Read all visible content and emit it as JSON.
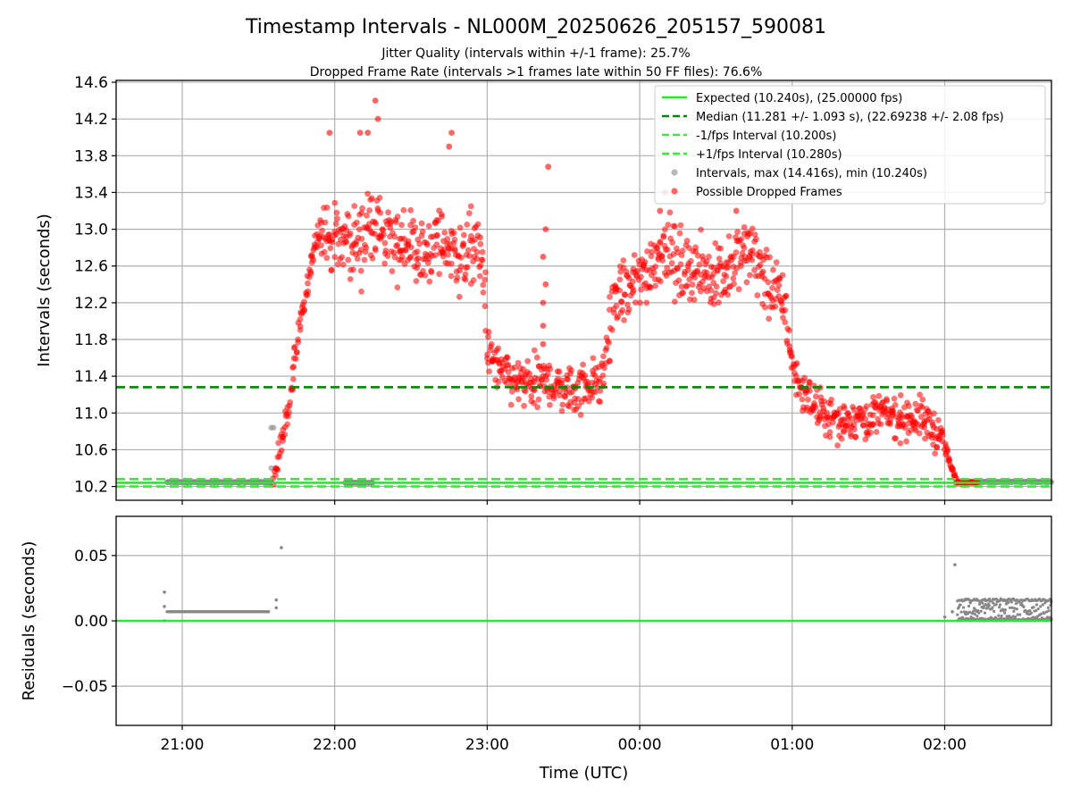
{
  "title": "Timestamp Intervals - NL000M_20250626_205157_590081",
  "subtitle_1": "Jitter Quality (intervals within +/-1 frame): 25.7%",
  "subtitle_2": "Dropped Frame Rate (intervals >1 frames late within 50 FF files): 76.6%",
  "colors": {
    "expected": "#22ee22",
    "median": "#008800",
    "bound": "#33ee33",
    "intervals": "#888888",
    "dropped": "#ff0000",
    "grid": "#b0b0b0",
    "axes": "#000000"
  },
  "chart_data": [
    {
      "type": "scatter",
      "ylabel": "Intervals (seconds)",
      "ylim": [
        10.05,
        14.62
      ],
      "yticks": [
        10.2,
        10.6,
        11.0,
        11.4,
        11.8,
        12.2,
        12.6,
        13.0,
        13.4,
        13.8,
        14.2,
        14.6
      ],
      "ytick_labels": [
        "10.2",
        "10.6",
        "11.0",
        "11.4",
        "11.8",
        "12.2",
        "12.6",
        "13.0",
        "13.4",
        "13.8",
        "14.2",
        "14.6"
      ],
      "grid": true,
      "lines": [
        {
          "label": "Expected (10.240s), (25.00000 fps)",
          "y": 10.24,
          "style": "solid",
          "color_key": "expected"
        },
        {
          "label": "Median (11.281 +/- 1.093 s), (22.69238 +/- 2.08 fps)",
          "y": 11.281,
          "style": "dashed",
          "color_key": "median"
        },
        {
          "label": "-1/fps Interval (10.200s)",
          "y": 10.2,
          "style": "dashed",
          "color_key": "bound"
        },
        {
          "label": "+1/fps Interval (10.280s)",
          "y": 10.28,
          "style": "dashed",
          "color_key": "bound"
        }
      ],
      "scatter_legend": [
        {
          "label": "Intervals, max (14.416s), min (10.240s)",
          "color_key": "intervals"
        },
        {
          "label": "Possible Dropped Frames",
          "color_key": "dropped"
        }
      ],
      "legend_position": "upper right",
      "normal_intervals": [
        {
          "x_start": "20:54",
          "x_end": "21:35",
          "value": 10.247
        },
        {
          "x_start": "22:04",
          "x_end": "22:15",
          "value": 10.24
        },
        {
          "x_start": "02:05",
          "x_end": "02:42",
          "value": 10.25
        }
      ],
      "dropped_trend": [
        [
          "21:36",
          10.3
        ],
        [
          "21:38",
          10.55
        ],
        [
          "21:40",
          10.8
        ],
        [
          "21:42",
          11.1
        ],
        [
          "21:44",
          11.5
        ],
        [
          "21:46",
          11.85
        ],
        [
          "21:48",
          12.15
        ],
        [
          "21:50",
          12.5
        ],
        [
          "21:52",
          12.8
        ],
        [
          "21:54",
          13.0
        ],
        [
          "22:00",
          12.85
        ],
        [
          "22:05",
          12.9
        ],
        [
          "22:10",
          12.85
        ],
        [
          "22:15",
          13.1
        ],
        [
          "22:20",
          12.85
        ],
        [
          "22:25",
          12.85
        ],
        [
          "22:30",
          12.85
        ],
        [
          "22:35",
          12.7
        ],
        [
          "22:40",
          12.9
        ],
        [
          "22:45",
          12.8
        ],
        [
          "22:50",
          12.65
        ],
        [
          "22:55",
          12.85
        ],
        [
          "22:59",
          12.5
        ],
        [
          "23:00",
          11.65
        ],
        [
          "23:05",
          11.45
        ],
        [
          "23:10",
          11.35
        ],
        [
          "23:15",
          11.3
        ],
        [
          "23:20",
          11.3
        ],
        [
          "23:25",
          11.35
        ],
        [
          "23:30",
          11.25
        ],
        [
          "23:35",
          11.25
        ],
        [
          "23:40",
          11.35
        ],
        [
          "23:45",
          11.3
        ],
        [
          "23:50",
          12.3
        ],
        [
          "23:55",
          12.3
        ],
        [
          "00:00",
          12.45
        ],
        [
          "00:05",
          12.65
        ],
        [
          "00:10",
          12.85
        ],
        [
          "00:15",
          12.6
        ],
        [
          "00:20",
          12.6
        ],
        [
          "00:25",
          12.5
        ],
        [
          "00:30",
          12.55
        ],
        [
          "00:35",
          12.5
        ],
        [
          "00:40",
          12.75
        ],
        [
          "00:45",
          12.75
        ],
        [
          "00:50",
          12.4
        ],
        [
          "00:55",
          12.3
        ],
        [
          "00:58",
          12.0
        ],
        [
          "01:00",
          11.5
        ],
        [
          "01:05",
          11.2
        ],
        [
          "01:10",
          11.05
        ],
        [
          "01:15",
          10.95
        ],
        [
          "01:20",
          10.9
        ],
        [
          "01:25",
          10.95
        ],
        [
          "01:30",
          10.95
        ],
        [
          "01:35",
          11.0
        ],
        [
          "01:40",
          10.95
        ],
        [
          "01:45",
          10.95
        ],
        [
          "01:50",
          10.95
        ],
        [
          "01:55",
          10.85
        ],
        [
          "01:58",
          10.75
        ],
        [
          "02:00",
          10.65
        ],
        [
          "02:02",
          10.45
        ],
        [
          "02:04",
          10.3
        ],
        [
          "02:06",
          10.24
        ],
        [
          "02:10",
          10.24
        ],
        [
          "02:13",
          10.24
        ]
      ],
      "dropped_spikes": [
        [
          "22:16",
          14.4
        ],
        [
          "22:17",
          14.2
        ],
        [
          "22:13",
          14.05
        ],
        [
          "22:10",
          14.05
        ],
        [
          "21:58",
          14.05
        ],
        [
          "22:46",
          14.05
        ],
        [
          "22:45",
          13.9
        ],
        [
          "23:24",
          13.68
        ],
        [
          "23:23",
          13.0
        ],
        [
          "23:22",
          12.7
        ],
        [
          "23:23",
          12.4
        ],
        [
          "23:22",
          12.2
        ],
        [
          "23:22",
          11.95
        ],
        [
          "23:22",
          11.75
        ],
        [
          "00:08",
          13.2
        ],
        [
          "00:10",
          13.4
        ],
        [
          "00:40",
          13.4
        ],
        [
          "00:38",
          13.2
        ]
      ],
      "residual_spikes_pre": [],
      "residual_spikes_post": []
    },
    {
      "type": "scatter",
      "ylabel": "Residuals (seconds)",
      "xlabel": "Time (UTC)",
      "ylim": [
        -0.08,
        0.08
      ],
      "yticks": [
        0.05,
        0.0,
        -0.05
      ],
      "ytick_labels": [
        "0.05",
        "0.00",
        "−0.05"
      ],
      "xlim": [
        "20:34",
        "02:42"
      ],
      "xticks": [
        "21:00",
        "22:00",
        "23:00",
        "00:00",
        "01:00",
        "02:00"
      ],
      "xtick_labels": [
        "21:00",
        "22:00",
        "23:00",
        "00:00",
        "01:00",
        "02:00"
      ],
      "grid": true,
      "zero_line": 0.0,
      "residual_groups": [
        {
          "x_start": "20:54",
          "x_end": "21:34",
          "value": 0.007
        },
        {
          "x_start": "02:05",
          "x_end": "02:42",
          "value": 0.001
        },
        {
          "x_start": "02:05",
          "x_end": "02:42",
          "value": 0.016
        }
      ],
      "residual_points": [
        [
          "20:53",
          0.022
        ],
        [
          "20:53",
          0.011
        ],
        [
          "20:53",
          0.0
        ],
        [
          "21:37",
          0.016
        ],
        [
          "21:37",
          0.01
        ],
        [
          "21:39",
          0.056
        ],
        [
          "02:00",
          0.003
        ],
        [
          "02:04",
          0.043
        ],
        [
          "02:03",
          0.007
        ]
      ]
    }
  ]
}
